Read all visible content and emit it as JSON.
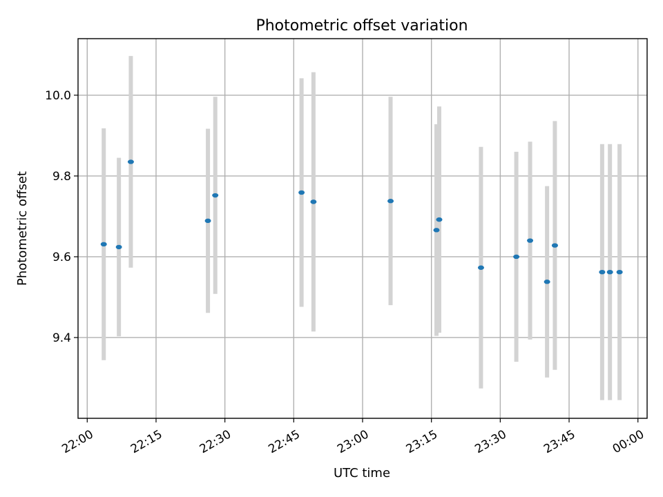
{
  "chart_data": {
    "type": "scatter",
    "title": "Photometric offset variation",
    "xlabel": "UTC time",
    "ylabel": "Photometric offset",
    "grid": true,
    "x_ticks": [
      {
        "time": "22:00",
        "label": "22:00"
      },
      {
        "time": "22:15",
        "label": "22:15"
      },
      {
        "time": "22:30",
        "label": "22:30"
      },
      {
        "time": "22:45",
        "label": "22:45"
      },
      {
        "time": "23:00",
        "label": "23:00"
      },
      {
        "time": "23:15",
        "label": "23:15"
      },
      {
        "time": "23:30",
        "label": "23:30"
      },
      {
        "time": "23:45",
        "label": "23:45"
      },
      {
        "time": "00:00",
        "label": "00:00"
      }
    ],
    "y_ticks": [
      9.4,
      9.6,
      9.8,
      10.0
    ],
    "y_tick_labels": [
      "9.4",
      "9.6",
      "9.8",
      "10.0"
    ],
    "xlim": [
      "21:58",
      "00:02"
    ],
    "ylim": [
      9.2,
      10.14
    ],
    "colors": {
      "points": "#1f77b4",
      "errorbars": "#d3d3d3",
      "grid": "#b0b0b0"
    },
    "points": [
      {
        "time": "22:03.6",
        "y": 9.631,
        "err": 0.287
      },
      {
        "time": "22:06.9",
        "y": 9.624,
        "err": 0.221
      },
      {
        "time": "22:09.5",
        "y": 9.835,
        "err": 0.262
      },
      {
        "time": "22:26.3",
        "y": 9.689,
        "err": 0.228
      },
      {
        "time": "22:27.9",
        "y": 9.752,
        "err": 0.244
      },
      {
        "time": "22:46.7",
        "y": 9.759,
        "err": 0.283
      },
      {
        "time": "22:49.3",
        "y": 9.736,
        "err": 0.321
      },
      {
        "time": "23:06.1",
        "y": 9.738,
        "err": 0.258
      },
      {
        "time": "23:16.1",
        "y": 9.666,
        "err": 0.262
      },
      {
        "time": "23:16.7",
        "y": 9.692,
        "err": 0.28
      },
      {
        "time": "23:25.8",
        "y": 9.573,
        "err": 0.299
      },
      {
        "time": "23:33.5",
        "y": 9.6,
        "err": 0.26
      },
      {
        "time": "23:36.5",
        "y": 9.64,
        "err": 0.245
      },
      {
        "time": "23:40.2",
        "y": 9.538,
        "err": 0.237
      },
      {
        "time": "23:41.9",
        "y": 9.628,
        "err": 0.308
      },
      {
        "time": "23:52.2",
        "y": 9.562,
        "err": 0.317
      },
      {
        "time": "23:53.9",
        "y": 9.562,
        "err": 0.317
      },
      {
        "time": "23:56.0",
        "y": 9.562,
        "err": 0.317
      }
    ]
  }
}
